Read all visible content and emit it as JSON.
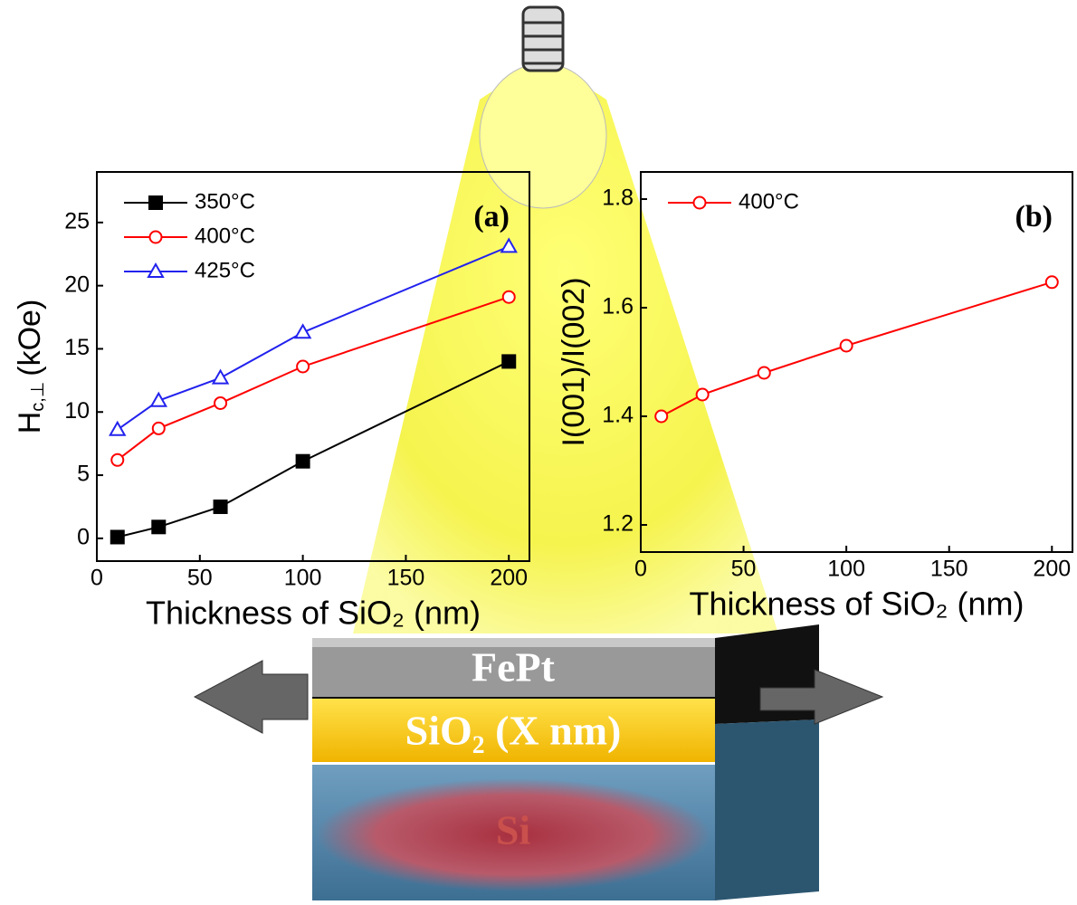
{
  "chart_data": [
    {
      "type": "line",
      "panel": "(a)",
      "xlabel": "Thickness of SiO₂ (nm)",
      "ylabel": {
        "main": "H",
        "sub": "c,⊥",
        "unit": "(kOe)"
      },
      "x": [
        10,
        30,
        60,
        100,
        200
      ],
      "series": [
        {
          "name": "350°C",
          "color": "#000000",
          "marker": "square",
          "values": [
            0.1,
            0.9,
            2.5,
            6.1,
            14.0
          ]
        },
        {
          "name": "400°C",
          "color": "#ff0000",
          "marker": "circle",
          "values": [
            6.2,
            8.7,
            10.7,
            13.6,
            19.1
          ]
        },
        {
          "name": "425°C",
          "color": "#2222ee",
          "marker": "triangle",
          "values": [
            8.6,
            10.9,
            12.7,
            16.3,
            23.1
          ]
        }
      ],
      "xlim": [
        0,
        210
      ],
      "xticks": [
        0,
        50,
        100,
        150,
        200
      ],
      "ylim": [
        -1.8,
        29
      ],
      "yticks": [
        0,
        5,
        10,
        15,
        20,
        25
      ],
      "legend": "upper left"
    },
    {
      "type": "line",
      "panel": "(b)",
      "xlabel": "Thickness of SiO₂ (nm)",
      "ylabel": "I(001)/I(002)",
      "x": [
        10,
        30,
        60,
        100,
        200
      ],
      "series": [
        {
          "name": "400°C",
          "color": "#ff0000",
          "marker": "circle",
          "values": [
            1.4,
            1.44,
            1.48,
            1.53,
            1.647
          ]
        }
      ],
      "xlim": [
        0,
        210
      ],
      "xticks": [
        0,
        50,
        100,
        150,
        200
      ],
      "ylim": [
        1.15,
        1.85
      ],
      "yticks": [
        1.2,
        1.4,
        1.6,
        1.8
      ],
      "legend": "upper left"
    }
  ],
  "diagram": {
    "layers": [
      "FePt",
      "SiO₂ (X nm)",
      "Si"
    ]
  }
}
